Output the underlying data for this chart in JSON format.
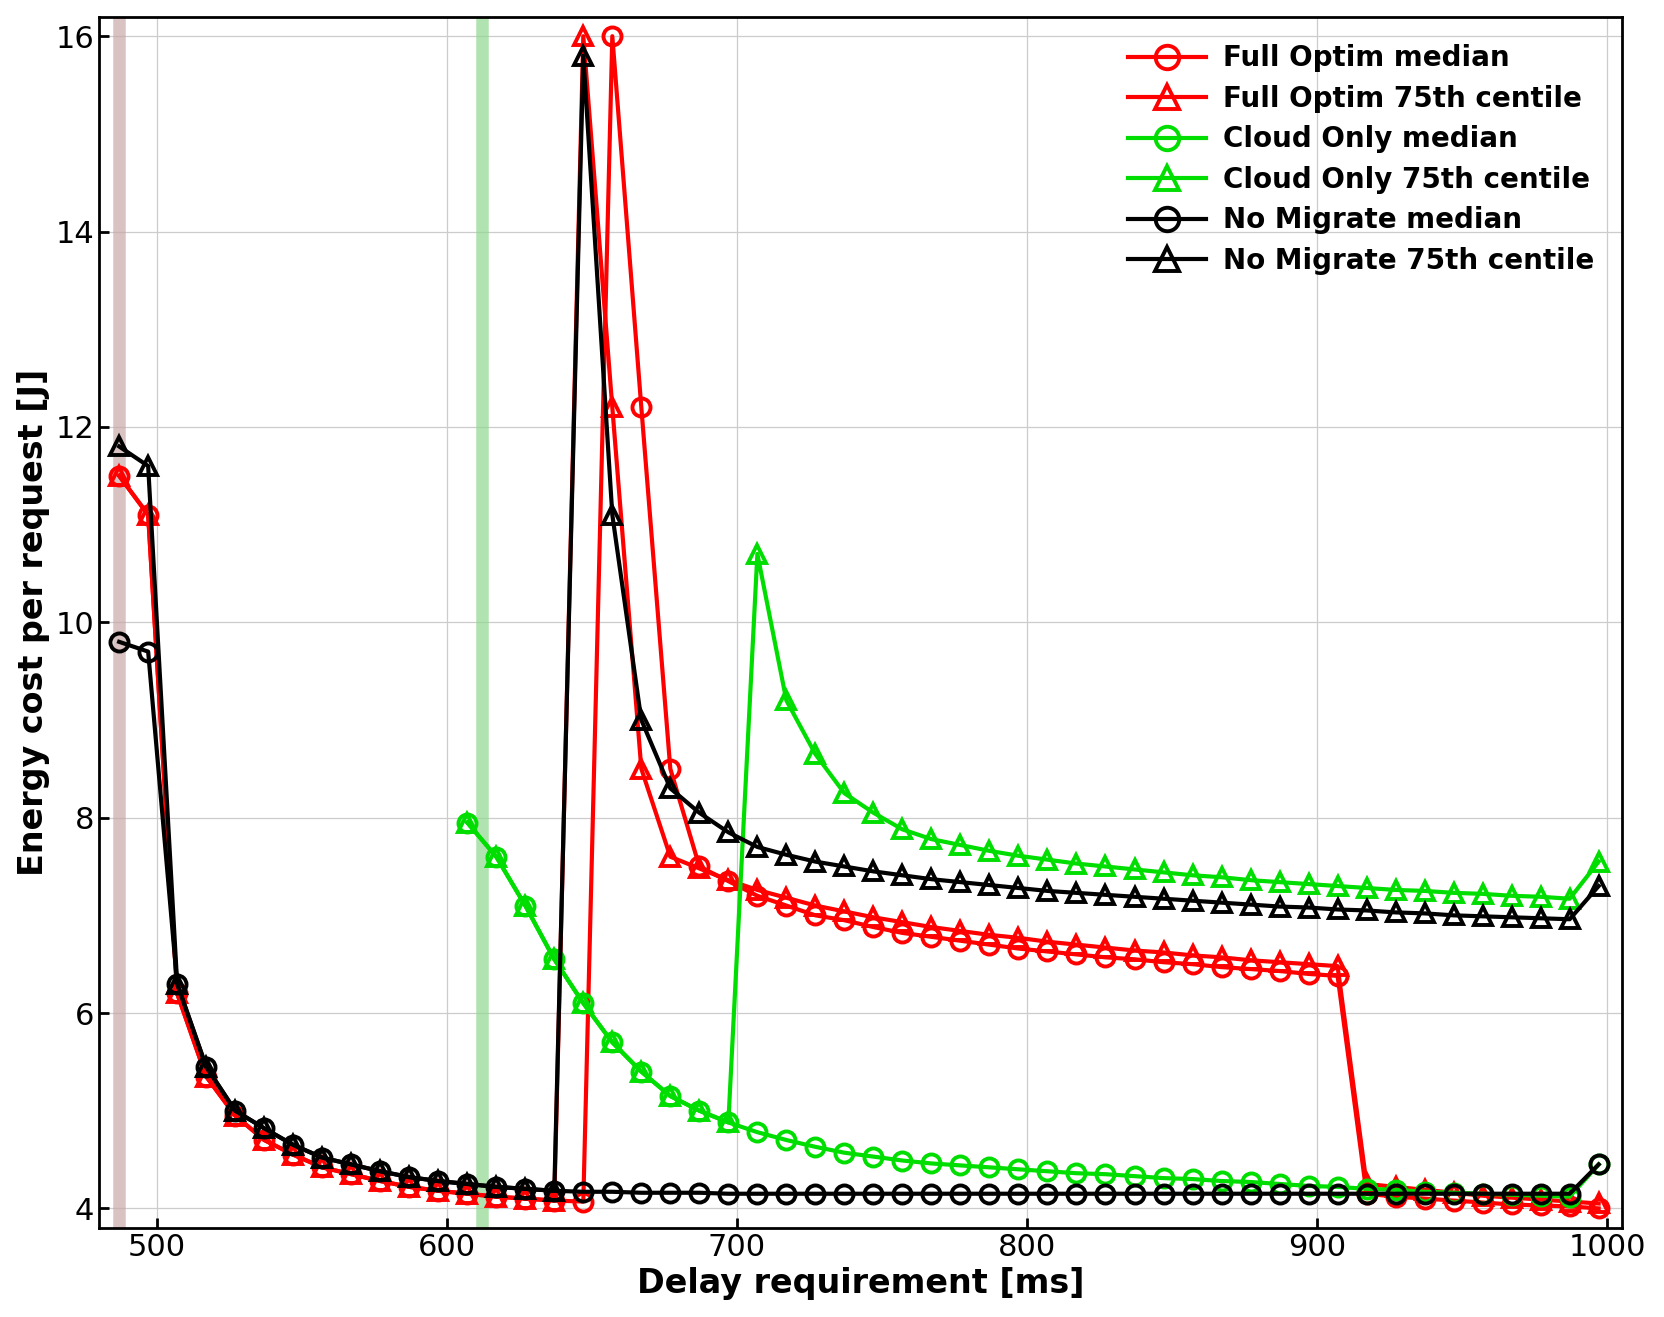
{
  "xlabel": "Delay requirement [ms]",
  "ylabel": "Energy cost per request [J]",
  "xlim": [
    480,
    1005
  ],
  "ylim": [
    3.8,
    16.2
  ],
  "xticks": [
    500,
    600,
    700,
    800,
    900,
    1000
  ],
  "yticks": [
    4,
    6,
    8,
    10,
    12,
    14,
    16
  ],
  "vline1_x": 487,
  "vline1_color": "#c8a8a8",
  "vline2_x": 612,
  "vline2_color": "#90d890",
  "legend_labels": [
    "Full Optim median",
    "Full Optim 75th centile",
    "Cloud Only median",
    "Cloud Only 75th centile",
    "No Migrate median",
    "No Migrate 75th centile"
  ],
  "series": {
    "full_optim_median": {
      "color": "#ff0000",
      "marker": "o",
      "x": [
        487,
        497,
        507,
        517,
        527,
        537,
        547,
        557,
        567,
        577,
        587,
        597,
        607,
        617,
        627,
        637,
        647,
        657,
        667,
        677,
        687,
        697,
        707,
        717,
        727,
        737,
        747,
        757,
        767,
        777,
        787,
        797,
        807,
        817,
        827,
        837,
        847,
        857,
        867,
        877,
        887,
        897,
        907,
        917,
        927,
        937,
        947,
        957,
        967,
        977,
        987,
        997
      ],
      "y": [
        11.5,
        11.1,
        6.2,
        5.35,
        4.95,
        4.7,
        4.55,
        4.42,
        4.35,
        4.28,
        4.22,
        4.18,
        4.15,
        4.12,
        4.1,
        4.08,
        4.07,
        16.0,
        12.2,
        8.5,
        7.5,
        7.35,
        7.2,
        7.1,
        7.0,
        6.95,
        6.88,
        6.82,
        6.78,
        6.74,
        6.7,
        6.66,
        6.63,
        6.6,
        6.57,
        6.55,
        6.52,
        6.5,
        6.47,
        6.45,
        6.43,
        6.4,
        6.38,
        4.15,
        4.12,
        4.1,
        4.08,
        4.06,
        4.04,
        4.03,
        4.02,
        4.0
      ]
    },
    "full_optim_75": {
      "color": "#ff0000",
      "marker": "^",
      "x": [
        487,
        497,
        507,
        517,
        527,
        537,
        547,
        557,
        567,
        577,
        587,
        597,
        607,
        617,
        627,
        637,
        647,
        657,
        667,
        677,
        687,
        697,
        707,
        717,
        727,
        737,
        747,
        757,
        767,
        777,
        787,
        797,
        807,
        817,
        827,
        837,
        847,
        857,
        867,
        877,
        887,
        897,
        907,
        917,
        927,
        937,
        947,
        957,
        967,
        977,
        987,
        997
      ],
      "y": [
        11.5,
        11.1,
        6.2,
        5.35,
        4.95,
        4.7,
        4.55,
        4.42,
        4.35,
        4.28,
        4.22,
        4.18,
        4.15,
        4.12,
        4.1,
        4.08,
        16.0,
        12.2,
        8.5,
        7.6,
        7.48,
        7.36,
        7.26,
        7.18,
        7.1,
        7.04,
        6.98,
        6.93,
        6.88,
        6.84,
        6.8,
        6.77,
        6.73,
        6.7,
        6.67,
        6.64,
        6.62,
        6.59,
        6.57,
        6.54,
        6.52,
        6.5,
        6.48,
        4.25,
        4.22,
        4.19,
        4.16,
        4.13,
        4.11,
        4.09,
        4.07,
        4.05
      ]
    },
    "cloud_only_median": {
      "color": "#00dd00",
      "marker": "o",
      "x": [
        607,
        617,
        627,
        637,
        647,
        657,
        667,
        677,
        687,
        697,
        707,
        717,
        727,
        737,
        747,
        757,
        767,
        777,
        787,
        797,
        807,
        817,
        827,
        837,
        847,
        857,
        867,
        877,
        887,
        897,
        907,
        917,
        927,
        937,
        947,
        957,
        967,
        977,
        987,
        997
      ],
      "y": [
        7.95,
        7.6,
        7.1,
        6.55,
        6.1,
        5.7,
        5.4,
        5.15,
        5.0,
        4.88,
        4.78,
        4.7,
        4.63,
        4.57,
        4.53,
        4.49,
        4.46,
        4.44,
        4.42,
        4.4,
        4.38,
        4.36,
        4.35,
        4.33,
        4.31,
        4.3,
        4.28,
        4.27,
        4.25,
        4.23,
        4.22,
        4.2,
        4.19,
        4.17,
        4.16,
        4.15,
        4.14,
        4.13,
        4.12,
        4.45
      ]
    },
    "cloud_only_75": {
      "color": "#00dd00",
      "marker": "^",
      "x": [
        607,
        617,
        627,
        637,
        647,
        657,
        667,
        677,
        687,
        697,
        707,
        717,
        727,
        737,
        747,
        757,
        767,
        777,
        787,
        797,
        807,
        817,
        827,
        837,
        847,
        857,
        867,
        877,
        887,
        897,
        907,
        917,
        927,
        937,
        947,
        957,
        967,
        977,
        987,
        997
      ],
      "y": [
        7.95,
        7.6,
        7.1,
        6.55,
        6.1,
        5.7,
        5.4,
        5.15,
        5.0,
        4.88,
        10.7,
        9.2,
        8.65,
        8.25,
        8.05,
        7.88,
        7.78,
        7.72,
        7.66,
        7.61,
        7.57,
        7.53,
        7.5,
        7.47,
        7.44,
        7.41,
        7.39,
        7.36,
        7.34,
        7.32,
        7.3,
        7.28,
        7.26,
        7.25,
        7.23,
        7.22,
        7.2,
        7.19,
        7.17,
        7.55
      ]
    },
    "no_migrate_median": {
      "color": "#000000",
      "marker": "o",
      "x": [
        487,
        497,
        507,
        517,
        527,
        537,
        547,
        557,
        567,
        577,
        587,
        597,
        607,
        617,
        627,
        637,
        647,
        657,
        667,
        677,
        687,
        697,
        707,
        717,
        727,
        737,
        747,
        757,
        767,
        777,
        787,
        797,
        807,
        817,
        827,
        837,
        847,
        857,
        867,
        877,
        887,
        897,
        907,
        917,
        927,
        937,
        947,
        957,
        967,
        977,
        987,
        997
      ],
      "y": [
        9.8,
        9.7,
        6.3,
        5.45,
        5.0,
        4.82,
        4.65,
        4.52,
        4.45,
        4.38,
        4.32,
        4.28,
        4.25,
        4.22,
        4.2,
        4.18,
        4.17,
        4.17,
        4.16,
        4.16,
        4.16,
        4.15,
        4.15,
        4.15,
        4.15,
        4.15,
        4.15,
        4.15,
        4.15,
        4.15,
        4.15,
        4.15,
        4.15,
        4.15,
        4.15,
        4.15,
        4.15,
        4.15,
        4.15,
        4.15,
        4.15,
        4.15,
        4.15,
        4.15,
        4.15,
        4.15,
        4.15,
        4.15,
        4.15,
        4.15,
        4.15,
        4.45
      ]
    },
    "no_migrate_75": {
      "color": "#000000",
      "marker": "^",
      "x": [
        487,
        497,
        507,
        517,
        527,
        537,
        547,
        557,
        567,
        577,
        587,
        597,
        607,
        617,
        627,
        637,
        647,
        657,
        667,
        677,
        687,
        697,
        707,
        717,
        727,
        737,
        747,
        757,
        767,
        777,
        787,
        797,
        807,
        817,
        827,
        837,
        847,
        857,
        867,
        877,
        887,
        897,
        907,
        917,
        927,
        937,
        947,
        957,
        967,
        977,
        987,
        997
      ],
      "y": [
        11.8,
        11.6,
        6.3,
        5.45,
        5.0,
        4.82,
        4.65,
        4.52,
        4.45,
        4.38,
        4.32,
        4.28,
        4.25,
        4.22,
        4.2,
        4.18,
        15.8,
        11.1,
        9.0,
        8.3,
        8.05,
        7.85,
        7.7,
        7.62,
        7.55,
        7.5,
        7.45,
        7.41,
        7.37,
        7.34,
        7.31,
        7.28,
        7.25,
        7.23,
        7.21,
        7.19,
        7.17,
        7.15,
        7.13,
        7.11,
        7.09,
        7.08,
        7.06,
        7.05,
        7.03,
        7.02,
        7.0,
        6.99,
        6.98,
        6.97,
        6.96,
        7.3
      ]
    }
  },
  "background_color": "#ffffff",
  "grid_color": "#cccccc",
  "label_fontsize": 24,
  "tick_fontsize": 22,
  "legend_fontsize": 20,
  "linewidth": 3.0,
  "markersize": 13,
  "markeredgewidth": 2.8
}
